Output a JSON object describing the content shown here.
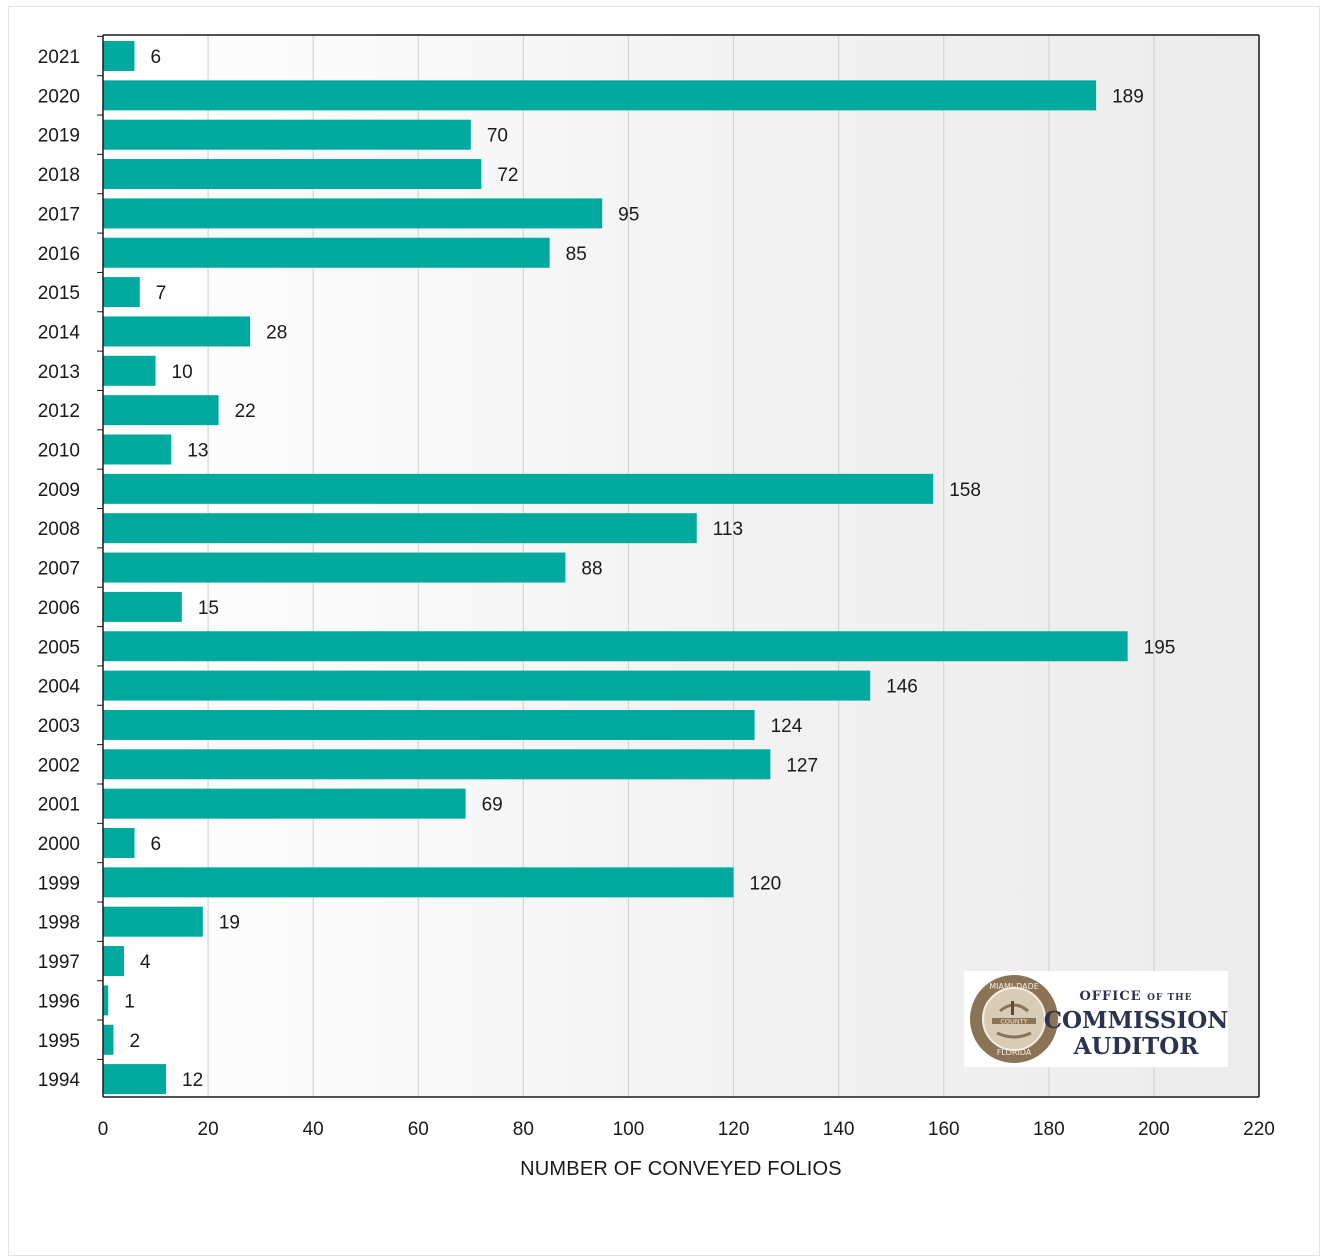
{
  "chart_data": {
    "type": "bar",
    "orientation": "horizontal",
    "categories": [
      "2021",
      "2020",
      "2019",
      "2018",
      "2017",
      "2016",
      "2015",
      "2014",
      "2013",
      "2012",
      "2010",
      "2009",
      "2008",
      "2007",
      "2006",
      "2005",
      "2004",
      "2003",
      "2002",
      "2001",
      "2000",
      "1999",
      "1998",
      "1997",
      "1996",
      "1995",
      "1994"
    ],
    "values": [
      6,
      189,
      70,
      72,
      95,
      85,
      7,
      28,
      10,
      22,
      13,
      158,
      113,
      88,
      15,
      195,
      146,
      124,
      127,
      69,
      6,
      120,
      19,
      4,
      1,
      2,
      12
    ],
    "xlabel": "NUMBER OF CONVEYED FOLIOS",
    "ylabel": "",
    "xlim": [
      0,
      220
    ],
    "xticks": [
      0,
      20,
      40,
      60,
      80,
      100,
      120,
      140,
      160,
      180,
      200,
      220
    ],
    "grid": "vertical",
    "data_labels": true,
    "bar_color": "#00a99d"
  },
  "logo": {
    "line1": "OFFICE",
    "line1_small": "OF THE",
    "line2": "COMMISSION",
    "line3": "AUDITOR",
    "seal_top": "MIAMI-DADE",
    "seal_band": "COUNTY",
    "seal_bottom": "FLORIDA",
    "text_color": "#2b3350",
    "seal_color": "#8b7355"
  }
}
